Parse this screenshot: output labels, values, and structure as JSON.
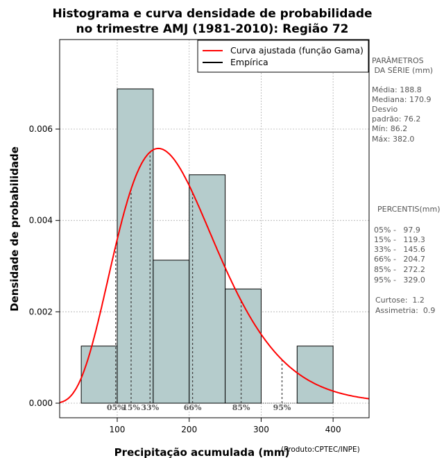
{
  "chart_data": {
    "type": "bar",
    "title": [
      "Histograma e curva densidade de probabilidade",
      "no trimestre AMJ (1981-2010): Região 72"
    ],
    "xlabel": "Precipitação acumulada (mm)",
    "ylabel": "Densidade de probabilidade",
    "xlim": [
      20,
      450
    ],
    "ylim": [
      0,
      0.0078
    ],
    "xticks": [
      100,
      200,
      300,
      400
    ],
    "yticks": [
      0.0,
      0.002,
      0.004,
      0.006
    ],
    "ytick_labels": [
      "0.000",
      "0.002",
      "0.004",
      "0.006"
    ],
    "bins": [
      {
        "start": 50,
        "end": 100,
        "density": 0.00125
      },
      {
        "start": 100,
        "end": 150,
        "density": 0.00688
      },
      {
        "start": 150,
        "end": 200,
        "density": 0.00313
      },
      {
        "start": 200,
        "end": 250,
        "density": 0.005
      },
      {
        "start": 250,
        "end": 300,
        "density": 0.0025
      },
      {
        "start": 300,
        "end": 350,
        "density": 0.0
      },
      {
        "start": 350,
        "end": 400,
        "density": 0.00125
      }
    ],
    "gamma_fit": {
      "shape": 5.99,
      "scale": 31.5
    },
    "percentile_lines": [
      {
        "label": "05%",
        "value": 97.9
      },
      {
        "label": "15%",
        "value": 119.3
      },
      {
        "label": "33%",
        "value": 145.6
      },
      {
        "label": "66%",
        "value": 204.7
      },
      {
        "label": "85%",
        "value": 272.2
      },
      {
        "label": "95%",
        "value": 329.0
      }
    ],
    "legend": [
      {
        "label": "Curva ajustada (função Gama)",
        "color": "#ff0000"
      },
      {
        "label": "Empírica",
        "color": "#000000"
      }
    ],
    "legend_position": "top-right",
    "grid": true,
    "colors": {
      "bar_fill": "#b5cccc",
      "bar_stroke": "#000000",
      "curve": "#ff0000",
      "grid": "#b0b0b0"
    }
  },
  "side_panel": {
    "params_title": [
      "PARÂMETROS",
      " DA SÉRIE (mm)"
    ],
    "params": [
      "Média:  188.8",
      "Mediana:  170.9",
      "Desvio",
      "padrão:  76.2",
      "Mín:  86.2",
      "Máx:  382.0"
    ],
    "percentis_title": "PERCENTIS(mm)",
    "percentis": [
      "05% -   97.9",
      "15% -   119.3",
      "33% -   145.6",
      "66% -   204.7",
      "85% -   272.2",
      "95% -   329.0"
    ],
    "stats": [
      "Curtose:  1.2",
      "Assimetria:  0.9"
    ]
  },
  "credit": "(Produto:CPTEC/INPE)"
}
